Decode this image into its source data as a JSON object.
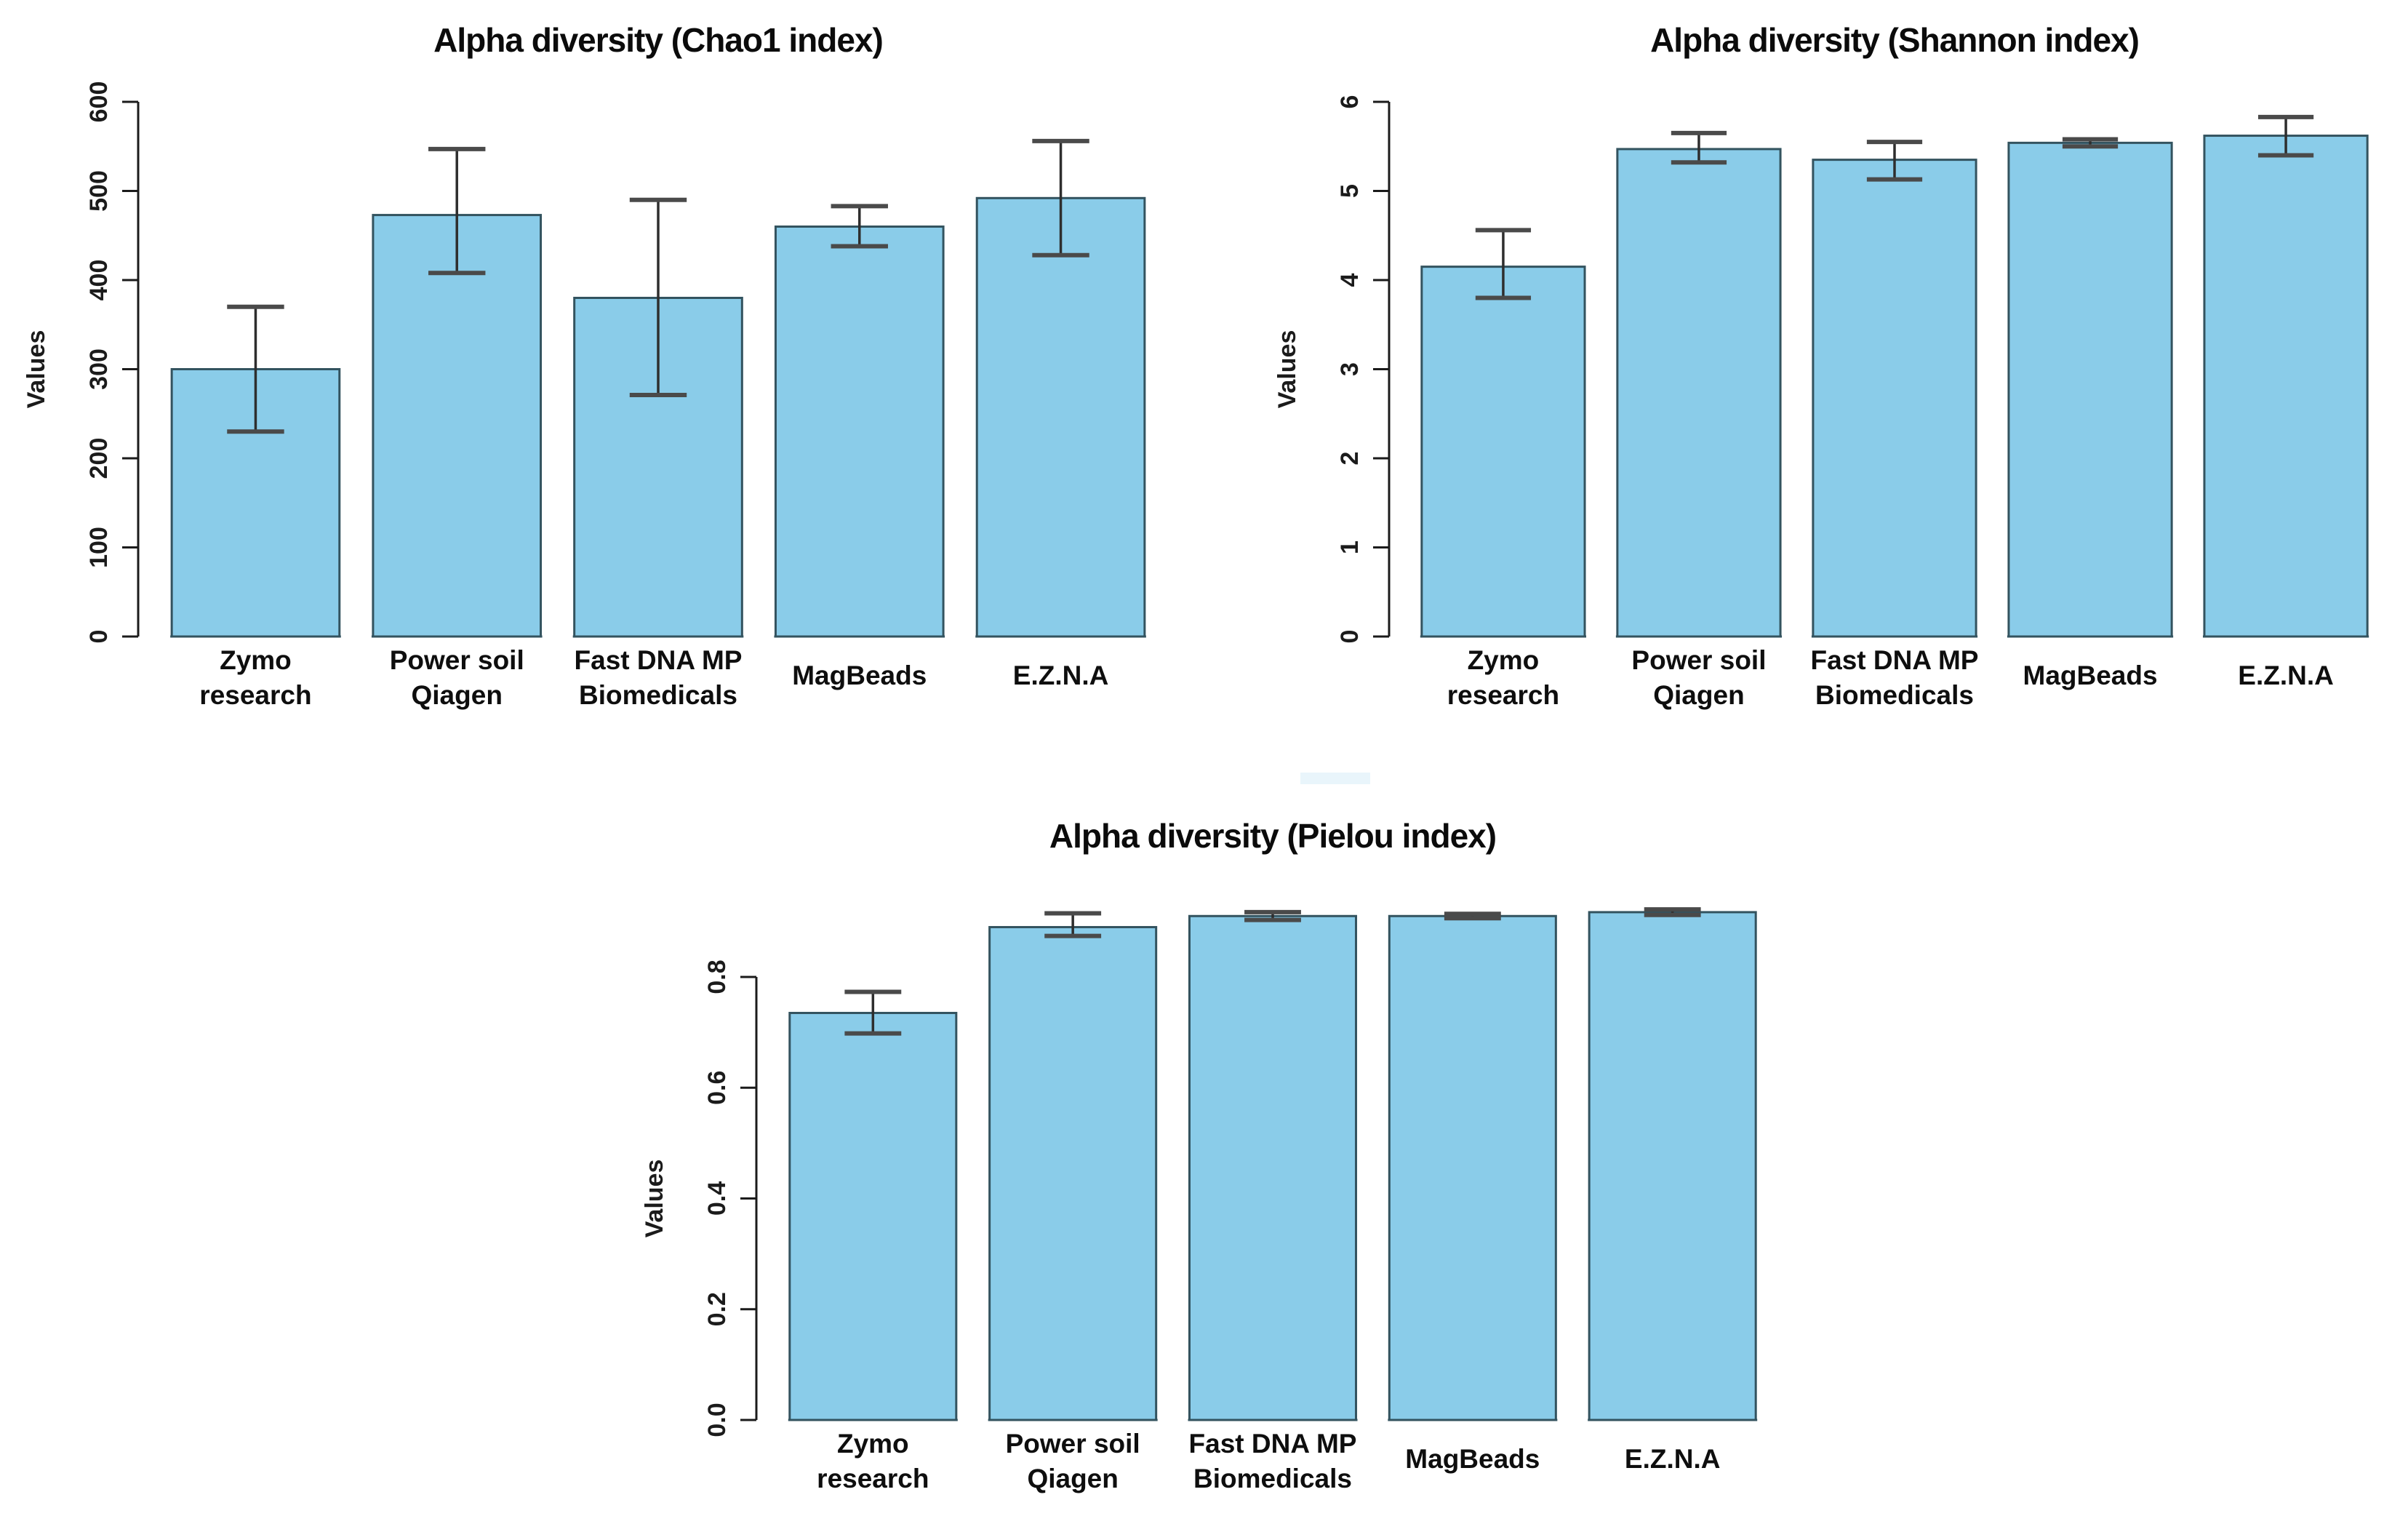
{
  "figure": {
    "background_color": "#ffffff",
    "text_color": "#0b0b0b",
    "description_titles": [
      "Alpha diversity (Chao1 index)",
      "Alpha diversity (Shannon index)",
      "Alpha diversity (Pielou index)"
    ]
  },
  "chart_data": [
    {
      "type": "bar",
      "title": "Alpha diversity (Chao1 index)",
      "xlabel": "",
      "ylabel": "Values",
      "categories": [
        "Zymo research",
        "Power soil Qiagen",
        "Fast DNA MP Biomedicals",
        "MagBeads",
        "E.Z.N.A"
      ],
      "category_lines": [
        [
          "Zymo",
          "research"
        ],
        [
          "Power soil",
          "Qiagen"
        ],
        [
          "Fast DNA MP",
          "Biomedicals"
        ],
        [
          "MagBeads"
        ],
        [
          "E.Z.N.A"
        ]
      ],
      "values": [
        300,
        473,
        380,
        460,
        492
      ],
      "error_low": [
        230,
        408,
        271,
        438,
        428
      ],
      "error_high": [
        370,
        547,
        490,
        483,
        556
      ],
      "ylim": [
        0,
        600
      ],
      "yticks": [
        0,
        100,
        200,
        300,
        400,
        500,
        600
      ],
      "ytick_labels": [
        "0",
        "100",
        "200",
        "300",
        "400",
        "500",
        "600"
      ],
      "grid": false,
      "legend": "none",
      "bar_color": "#8ACCE9",
      "bar_border_color": "#33535F",
      "error_color": "#2e2e2e",
      "error_cap_color": "#4a4a4a"
    },
    {
      "type": "bar",
      "title": "Alpha diversity (Shannon index)",
      "xlabel": "",
      "ylabel": "Values",
      "categories": [
        "Zymo research",
        "Power soil Qiagen",
        "Fast DNA MP Biomedicals",
        "MagBeads",
        "E.Z.N.A"
      ],
      "category_lines": [
        [
          "Zymo",
          "research"
        ],
        [
          "Power soil",
          "Qiagen"
        ],
        [
          "Fast DNA MP",
          "Biomedicals"
        ],
        [
          "MagBeads"
        ],
        [
          "E.Z.N.A"
        ]
      ],
      "values": [
        4.15,
        5.47,
        5.35,
        5.54,
        5.62
      ],
      "error_low": [
        3.8,
        5.32,
        5.13,
        5.5,
        5.4
      ],
      "error_high": [
        4.56,
        5.65,
        5.55,
        5.58,
        5.83
      ],
      "ylim": [
        0,
        6
      ],
      "yticks": [
        0,
        1,
        2,
        3,
        4,
        5,
        6
      ],
      "ytick_labels": [
        "0",
        "1",
        "2",
        "3",
        "4",
        "5",
        "6"
      ],
      "grid": false,
      "legend": "none",
      "bar_color": "#8ACCE9",
      "bar_border_color": "#33535F",
      "error_color": "#2e2e2e",
      "error_cap_color": "#4a4a4a"
    },
    {
      "type": "bar",
      "title": "Alpha diversity (Pielou index)",
      "xlabel": "",
      "ylabel": "Values",
      "categories": [
        "Zymo research",
        "Power soil Qiagen",
        "Fast DNA MP Biomedicals",
        "MagBeads",
        "E.Z.N.A"
      ],
      "category_lines": [
        [
          "Zymo",
          "research"
        ],
        [
          "Power soil",
          "Qiagen"
        ],
        [
          "Fast DNA MP",
          "Biomedicals"
        ],
        [
          "MagBeads"
        ],
        [
          "E.Z.N.A"
        ]
      ],
      "values": [
        0.735,
        0.89,
        0.91,
        0.91,
        0.917
      ],
      "error_low": [
        0.698,
        0.874,
        0.903,
        0.906,
        0.912
      ],
      "error_high": [
        0.773,
        0.915,
        0.917,
        0.914,
        0.922
      ],
      "ylim": [
        0,
        0.8
      ],
      "yticks": [
        0.0,
        0.2,
        0.4,
        0.6,
        0.8
      ],
      "ytick_labels": [
        "0.0",
        "0.2",
        "0.4",
        "0.6",
        "0.8"
      ],
      "grid": false,
      "legend": "none",
      "bar_color": "#8ACCE9",
      "bar_border_color": "#33535F",
      "error_color": "#2e2e2e",
      "error_cap_color": "#4a4a4a"
    }
  ]
}
